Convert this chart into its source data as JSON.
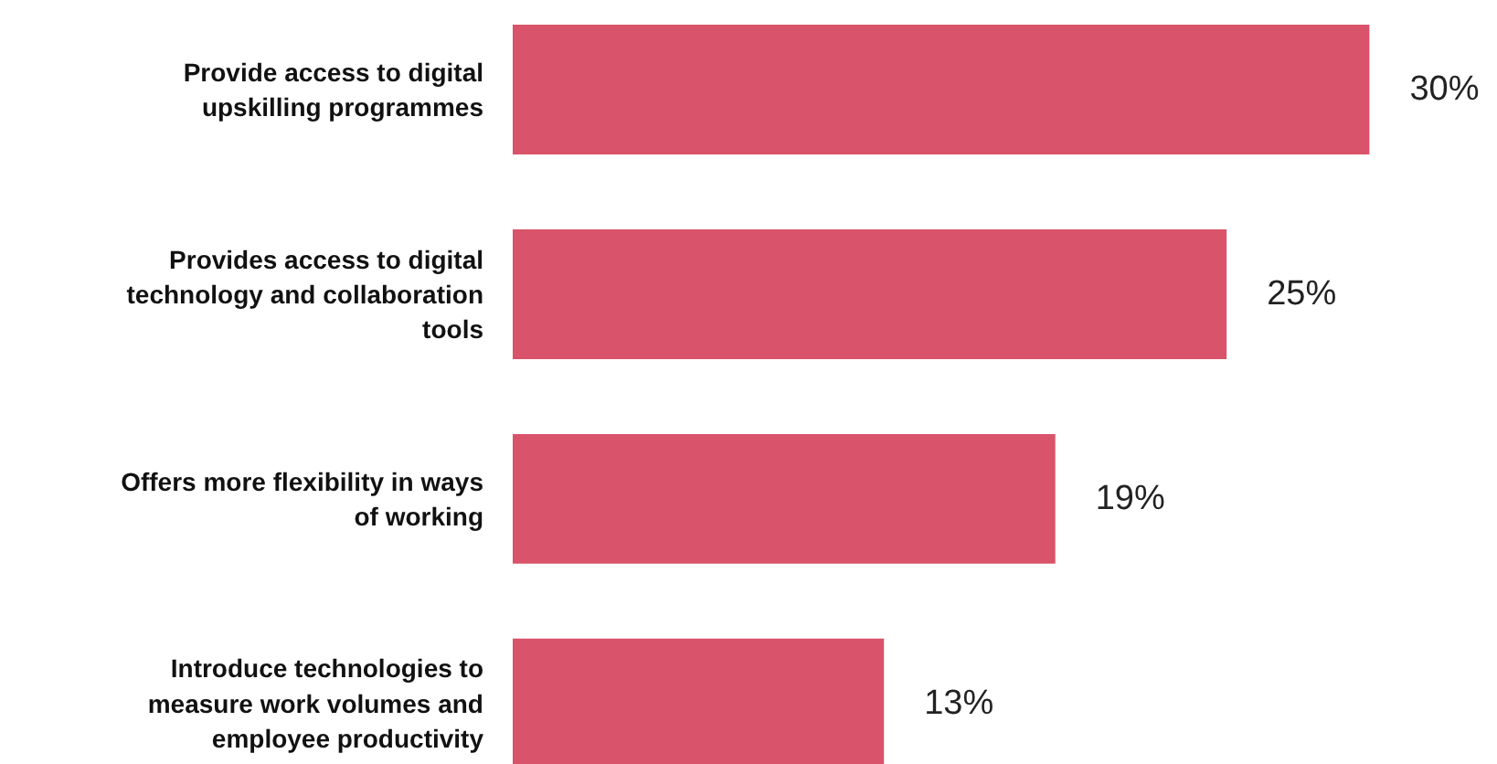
{
  "chart_data": {
    "type": "bar",
    "orientation": "horizontal",
    "categories": [
      "Provide access to digital\nupskilling programmes",
      "Provides access to digital\ntechnology and collaboration\ntools",
      "Offers more flexibility in ways\nof working",
      "Introduce technologies to\nmeasure work volumes and\nemployee productivity"
    ],
    "values": [
      30,
      25,
      19,
      13
    ],
    "value_labels": [
      "30%",
      "25%",
      "19%",
      "13%"
    ],
    "color": "#d9536a",
    "tick_labels": "y",
    "grid": false
  }
}
